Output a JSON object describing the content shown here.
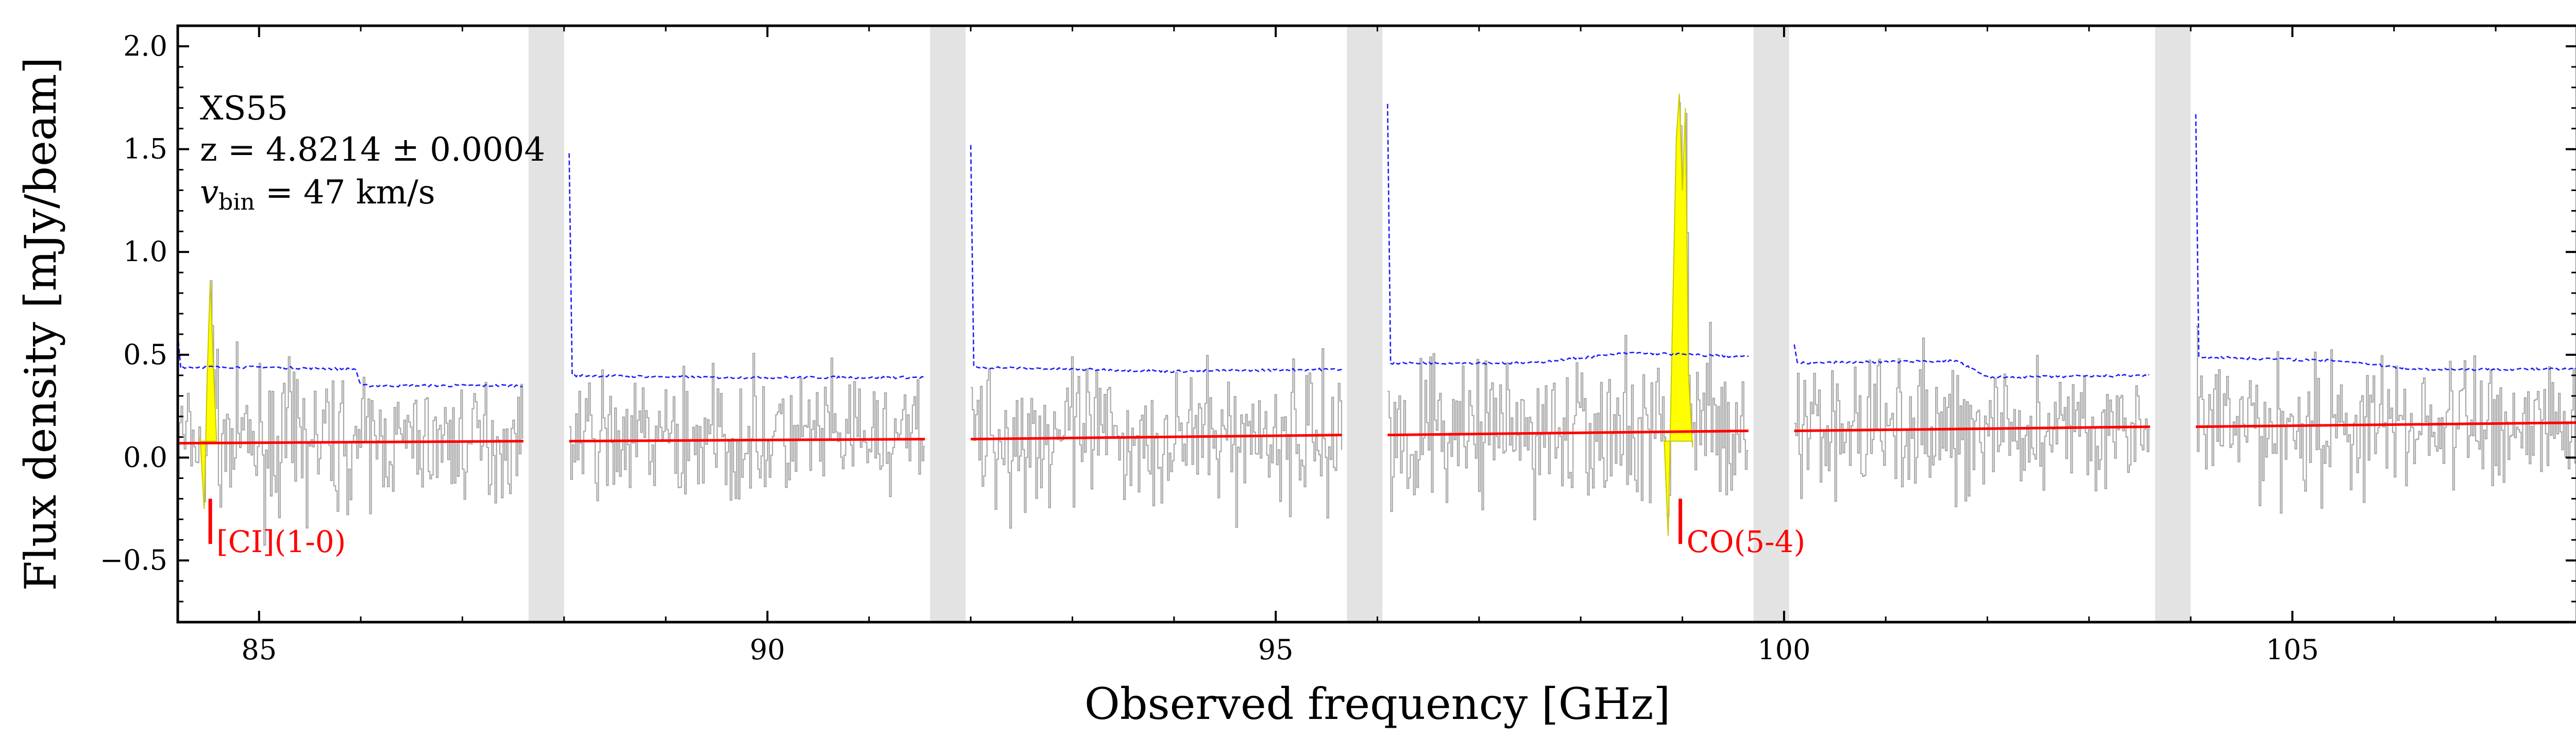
{
  "chart_data": {
    "type": "line",
    "title": "",
    "xlabel": "Observed frequency [GHz]",
    "ylabel": "Flux density [mJy/beam]",
    "xlim": [
      84.2,
      107.8
    ],
    "ylim": [
      -0.8,
      2.1
    ],
    "xticks": [
      85,
      90,
      95,
      100,
      105
    ],
    "xtick_labels": [
      "85",
      "90",
      "95",
      "100",
      "105"
    ],
    "yticks": [
      -0.5,
      0.0,
      0.5,
      1.0,
      1.5,
      2.0
    ],
    "ytick_labels": [
      "−0.5",
      "0.0",
      "0.5",
      "1.0",
      "1.5",
      "2.0"
    ],
    "grid": false,
    "annotation": {
      "name": "XS55",
      "redshift": "z = 4.8214 ± 0.0004",
      "vbin_prefix": "v",
      "vbin_sub": "bin",
      "vbin_value": " = 47 km/s"
    },
    "gaps": [
      [
        87.65,
        88.0
      ],
      [
        91.6,
        91.95
      ],
      [
        95.7,
        96.05
      ],
      [
        99.7,
        100.05
      ],
      [
        103.65,
        104.0
      ]
    ],
    "segments": [
      {
        "range": [
          84.2,
          87.6
        ],
        "noise": [
          [
            84.2,
            0.44
          ],
          [
            85.0,
            0.44
          ],
          [
            85.95,
            0.43
          ],
          [
            86.0,
            0.35
          ],
          [
            87.6,
            0.35
          ]
        ],
        "continuum": [
          0.07,
          0.08
        ],
        "edge_peak": {
          "side": "start",
          "value": 0.6
        }
      },
      {
        "range": [
          88.05,
          91.55
        ],
        "noise": [
          [
            88.05,
            0.4
          ],
          [
            89.5,
            0.39
          ],
          [
            91.55,
            0.39
          ]
        ],
        "continuum": [
          0.08,
          0.09
        ],
        "edge_peak": {
          "side": "start",
          "value": 1.48
        }
      },
      {
        "range": [
          92.0,
          95.65
        ],
        "noise": [
          [
            92.0,
            0.44
          ],
          [
            94.0,
            0.42
          ],
          [
            95.65,
            0.43
          ]
        ],
        "continuum": [
          0.09,
          0.11
        ],
        "edge_peak": {
          "side": "start",
          "value": 1.52
        }
      },
      {
        "range": [
          96.1,
          99.65
        ],
        "noise": [
          [
            96.1,
            0.46
          ],
          [
            97.5,
            0.46
          ],
          [
            98.5,
            0.51
          ],
          [
            99.65,
            0.49
          ]
        ],
        "continuum": [
          0.11,
          0.13
        ],
        "edge_peak": {
          "side": "start",
          "value": 1.72
        }
      },
      {
        "range": [
          100.1,
          103.6
        ],
        "noise": [
          [
            100.1,
            0.46
          ],
          [
            101.7,
            0.47
          ],
          [
            102.0,
            0.39
          ],
          [
            103.6,
            0.4
          ]
        ],
        "continuum": [
          0.13,
          0.15
        ],
        "edge_peak": {
          "side": "start",
          "value": 0.55
        }
      },
      {
        "range": [
          104.05,
          107.8
        ],
        "noise": [
          [
            104.05,
            0.49
          ],
          [
            105.5,
            0.47
          ],
          [
            106.2,
            0.43
          ],
          [
            107.8,
            0.43
          ]
        ],
        "continuum": [
          0.15,
          0.17
        ],
        "edge_peak": {
          "side": "start",
          "value": 1.67
        }
      }
    ],
    "emission_lines": [
      {
        "label": "[CI](1-0)",
        "freq": 84.52,
        "profile": [
          [
            84.42,
            0.1
          ],
          [
            84.46,
            -0.25
          ],
          [
            84.49,
            0.4
          ],
          [
            84.52,
            0.86
          ],
          [
            84.55,
            0.45
          ],
          [
            84.58,
            0.1
          ]
        ]
      },
      {
        "label": "CO(5-4)",
        "freq": 98.98,
        "profile": [
          [
            98.82,
            0.1
          ],
          [
            98.86,
            -0.38
          ],
          [
            98.9,
            0.6
          ],
          [
            98.94,
            1.55
          ],
          [
            98.97,
            1.77
          ],
          [
            99.0,
            1.3
          ],
          [
            99.03,
            1.7
          ],
          [
            99.06,
            0.4
          ],
          [
            99.1,
            0.05
          ]
        ]
      }
    ],
    "series": [
      {
        "role": "spectrum",
        "color": "#9e9e9e"
      },
      {
        "role": "noise-rms",
        "color": "#0000ff",
        "dashed": true
      },
      {
        "role": "continuum",
        "color": "#ff0000"
      },
      {
        "role": "line-fill",
        "color": "#ffff00"
      }
    ]
  }
}
